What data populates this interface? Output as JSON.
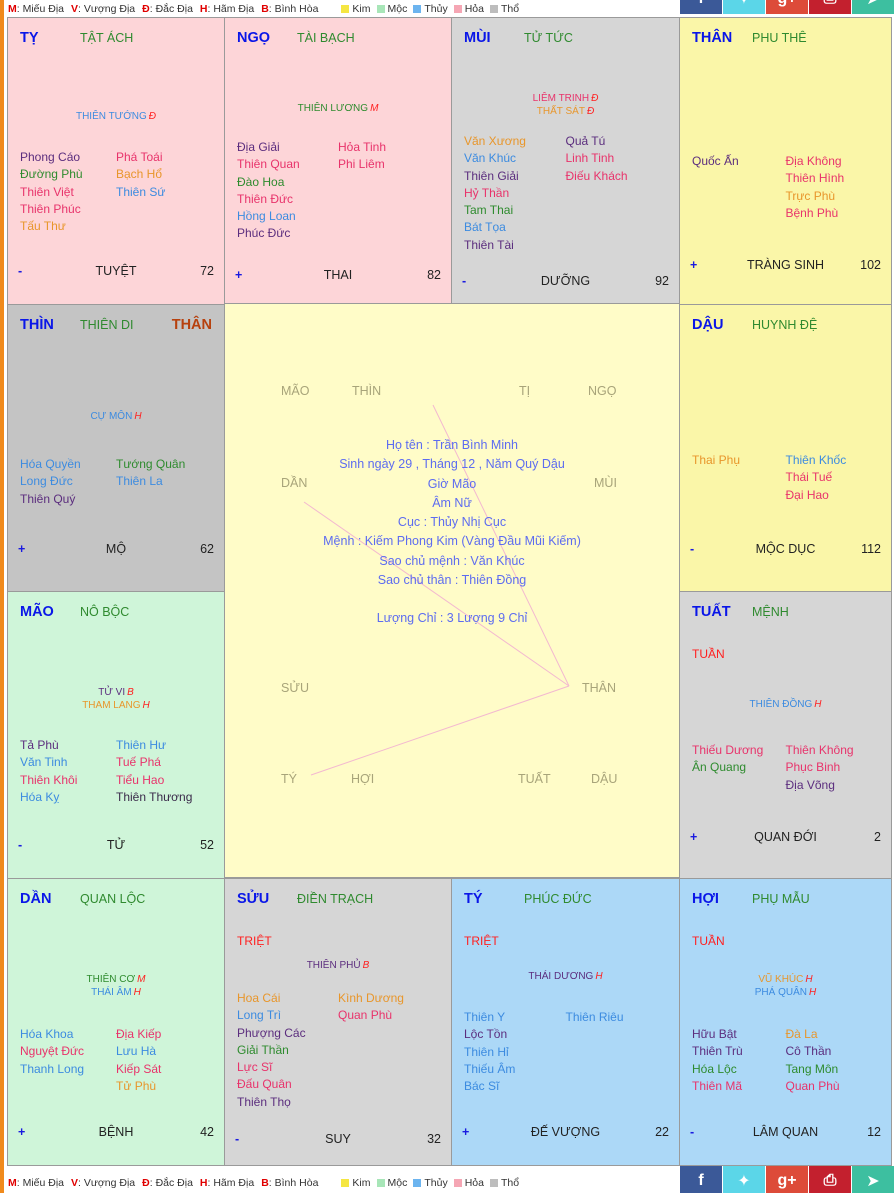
{
  "legend": {
    "qualities": [
      {
        "key": "M",
        "label": ": Miếu Địa"
      },
      {
        "key": "V",
        "label": ": Vượng Địa"
      },
      {
        "key": "Đ",
        "label": ": Đắc Địa"
      },
      {
        "key": "H",
        "label": ": Hãm Địa"
      },
      {
        "key": "B",
        "label": ": Bình Hòa"
      }
    ],
    "elements": [
      {
        "label": "Kim",
        "color": "#f5e642"
      },
      {
        "label": "Mộc",
        "color": "#a8e6b8"
      },
      {
        "label": "Thủy",
        "color": "#6cb4ef"
      },
      {
        "label": "Hỏa",
        "color": "#f5a6b4"
      },
      {
        "label": "Thổ",
        "color": "#bdbdbd"
      }
    ]
  },
  "share": [
    {
      "name": "facebook",
      "glyph": "f",
      "color": "#3b5998"
    },
    {
      "name": "twitter",
      "glyph": "🐦",
      "color": "#5bd6e8"
    },
    {
      "name": "google-plus",
      "glyph": "g+",
      "color": "#dd4b39"
    },
    {
      "name": "print",
      "glyph": "⎙",
      "color": "#c3202e"
    },
    {
      "name": "telegram",
      "glyph": "➤",
      "color": "#3dbfa0"
    }
  ],
  "cells": {
    "ty_snake": {
      "branch": "TỴ",
      "palace": "TẬT ÁCH",
      "bg": "#fdd5d8",
      "main": [
        {
          "name": "THIÊN TƯỚNG",
          "q": "Đ",
          "color": "#3c8be0"
        }
      ],
      "left": [
        [
          "Phong Cáo",
          "purple"
        ],
        [
          "Đường Phù",
          "green"
        ],
        [
          "Thiên Việt",
          "pink"
        ],
        [
          "Thiên Phúc",
          "pink"
        ],
        [
          "Tấu Thư",
          "orange"
        ]
      ],
      "right": [
        [
          "Phá Toái",
          "pink"
        ],
        [
          "Bạch Hổ",
          "orange"
        ],
        [
          "Thiên Sứ",
          "blue"
        ]
      ],
      "sign": "-",
      "stage": "TUYỆT",
      "age": "72"
    },
    "ngo": {
      "branch": "NGỌ",
      "palace": "TÀI BẠCH",
      "bg": "#fdd5d8",
      "main": [
        {
          "name": "THIÊN LƯƠNG",
          "q": "M",
          "color": "#2e8b2e"
        }
      ],
      "left": [
        [
          "Địa Giải",
          "purple"
        ],
        [
          "Thiên Quan",
          "pink"
        ],
        [
          "Đào Hoa",
          "green"
        ],
        [
          "Thiên Đức",
          "pink"
        ],
        [
          "Hồng Loan",
          "blue"
        ],
        [
          "Phúc Đức",
          "purple"
        ]
      ],
      "right": [
        [
          "Hỏa Tinh",
          "pink"
        ],
        [
          "Phi Liêm",
          "pink"
        ]
      ],
      "sign": "+",
      "stage": "THAI",
      "age": "82"
    },
    "mui": {
      "branch": "MÙI",
      "palace": "TỬ TỨC",
      "bg": "#d6d6d6",
      "main": [
        {
          "name": "LIÊM TRINH",
          "q": "Đ",
          "color": "#e8336b"
        },
        {
          "name": "THẤT SÁT",
          "q": "Đ",
          "color": "#e8962b"
        }
      ],
      "left": [
        [
          "Văn Xương",
          "orange"
        ],
        [
          "Văn Khúc",
          "blue"
        ],
        [
          "Thiên Giải",
          "purple"
        ],
        [
          "Hỷ Thần",
          "pink"
        ],
        [
          "Tam Thai",
          "green"
        ],
        [
          "Bát Tọa",
          "blue"
        ],
        [
          "Thiên Tài",
          "purple"
        ]
      ],
      "right": [
        [
          "Quả Tú",
          "purple"
        ],
        [
          "Linh Tinh",
          "pink"
        ],
        [
          "Điếu Khách",
          "pink"
        ]
      ],
      "sign": "-",
      "stage": "DƯỠNG",
      "age": "92"
    },
    "than_monkey": {
      "branch": "THÂN",
      "palace": "PHU THÊ",
      "bg": "#faf6a8",
      "main": [],
      "left": [
        [
          "Quốc Ấn",
          "purple"
        ]
      ],
      "right": [
        [
          "Địa Không",
          "pink"
        ],
        [
          "Thiên Hình",
          "pink"
        ],
        [
          "Trực Phù",
          "orange"
        ],
        [
          "Bệnh Phù",
          "pink"
        ]
      ],
      "sign": "+",
      "stage": "TRÀNG SINH",
      "age": "102"
    },
    "thin": {
      "branch": "THÌN",
      "palace": "THIÊN DI",
      "than_mark": "THÂN",
      "bg": "#c4c4c4",
      "main": [
        {
          "name": "CỰ MÔN",
          "q": "H",
          "color": "#3c8be0"
        }
      ],
      "left": [
        [
          "Hóa Quyền",
          "blue"
        ],
        [
          "Long Đức",
          "blue"
        ],
        [
          "Thiên Quý",
          "purple"
        ]
      ],
      "right": [
        [
          "Tướng Quân",
          "green"
        ],
        [
          "Thiên La",
          "blue"
        ]
      ],
      "sign": "+",
      "stage": "MỘ",
      "age": "62"
    },
    "dau": {
      "branch": "DẬU",
      "palace": "HUYNH ĐỆ",
      "bg": "#faf6a8",
      "main": [],
      "left": [
        [
          "Thai Phụ",
          "orange"
        ]
      ],
      "right": [
        [
          "Thiên Khốc",
          "blue"
        ],
        [
          "Thái Tuế",
          "pink"
        ],
        [
          "Đại Hao",
          "pink"
        ]
      ],
      "sign": "-",
      "stage": "MỘC DỤC",
      "age": "112"
    },
    "mao": {
      "branch": "MÃO",
      "palace": "NÔ BỘC",
      "bg": "#cff5d9",
      "main": [
        {
          "name": "TỬ VI",
          "q": "B",
          "color": "#5b2d7e"
        },
        {
          "name": "THAM LANG",
          "q": "H",
          "color": "#e8962b"
        }
      ],
      "left": [
        [
          "Tả Phù",
          "purple"
        ],
        [
          "Văn Tinh",
          "blue"
        ],
        [
          "Thiên Khôi",
          "pink"
        ],
        [
          "Hóa Kỵ",
          "blue"
        ]
      ],
      "right": [
        [
          "Thiên Hư",
          "blue"
        ],
        [
          "Tuế Phá",
          "pink"
        ],
        [
          "Tiểu Hao",
          "pink"
        ],
        [
          "Thiên Thương",
          "dark"
        ]
      ],
      "sign": "-",
      "stage": "TỬ",
      "age": "52"
    },
    "tuat": {
      "branch": "TUẤT",
      "palace": "MỆNH",
      "tuan": "TUẦN",
      "bg": "#d6d6d6",
      "main": [
        {
          "name": "THIÊN ĐỒNG",
          "q": "H",
          "color": "#3c8be0"
        }
      ],
      "left": [
        [
          "Thiếu Dương",
          "pink"
        ],
        [
          "Ân Quang",
          "green"
        ]
      ],
      "right": [
        [
          "Thiên Không",
          "pink"
        ],
        [
          "Phục Binh",
          "pink"
        ],
        [
          "Địa Võng",
          "purple"
        ]
      ],
      "sign": "+",
      "stage": "QUAN ĐỚI",
      "age": "2"
    },
    "dan": {
      "branch": "DẦN",
      "palace": "QUAN LỘC",
      "bg": "#cff5d9",
      "main": [
        {
          "name": "THIÊN CƠ",
          "q": "M",
          "color": "#2e8b2e"
        },
        {
          "name": "THÁI ÂM",
          "q": "H",
          "color": "#3c8be0"
        }
      ],
      "left": [
        [
          "Hóa Khoa",
          "blue"
        ],
        [
          "Nguyệt Đức",
          "pink"
        ],
        [
          "Thanh Long",
          "blue"
        ]
      ],
      "right": [
        [
          "Địa Kiếp",
          "pink"
        ],
        [
          "Lưu Hà",
          "blue"
        ],
        [
          "Kiếp Sát",
          "pink"
        ],
        [
          "Tử Phù",
          "orange"
        ]
      ],
      "sign": "+",
      "stage": "BỆNH",
      "age": "42"
    },
    "suu": {
      "branch": "SỬU",
      "palace": "ĐIỀN TRẠCH",
      "tuan": "TRIỆT",
      "bg": "#d6d6d6",
      "main": [
        {
          "name": "THIÊN PHỦ",
          "q": "B",
          "color": "#5b2d7e"
        }
      ],
      "left": [
        [
          "Hoa Cái",
          "orange"
        ],
        [
          "Long Trì",
          "blue"
        ],
        [
          "Phượng Các",
          "purple"
        ],
        [
          "Giải Thần",
          "green"
        ],
        [
          "Lực Sĩ",
          "pink"
        ],
        [
          "Đấu Quân",
          "pink"
        ],
        [
          "Thiên Thọ",
          "purple"
        ]
      ],
      "right": [
        [
          "Kình Dương",
          "orange"
        ],
        [
          "Quan Phù",
          "pink"
        ]
      ],
      "sign": "-",
      "stage": "SUY",
      "age": "32"
    },
    "ty_rat": {
      "branch": "TÝ",
      "palace": "PHÚC ĐỨC",
      "tuan": "TRIỆT",
      "bg": "#acd8f7",
      "main": [
        {
          "name": "THÁI DƯƠNG",
          "q": "H",
          "color": "#5b2d7e"
        }
      ],
      "left": [
        [
          "Thiên Y",
          "blue"
        ],
        [
          "Lộc Tồn",
          "purple"
        ],
        [
          "Thiên Hỉ",
          "blue"
        ],
        [
          "Thiếu Âm",
          "blue"
        ],
        [
          "Bác Sĩ",
          "blue"
        ]
      ],
      "right": [
        [
          "Thiên Riêu",
          "blue"
        ]
      ],
      "sign": "+",
      "stage": "ĐẾ VƯỢNG",
      "age": "22"
    },
    "hoi": {
      "branch": "HỢI",
      "palace": "PHỤ MẪU",
      "tuan": "TUẦN",
      "bg": "#acd8f7",
      "main": [
        {
          "name": "VŨ KHÚC",
          "q": "H",
          "color": "#e8962b"
        },
        {
          "name": "PHÁ QUÂN",
          "q": "H",
          "color": "#3c8be0"
        }
      ],
      "left": [
        [
          "Hữu Bật",
          "purple"
        ],
        [
          "Thiên Trù",
          "purple"
        ],
        [
          "Hóa Lộc",
          "green"
        ],
        [
          "Thiên Mã",
          "pink"
        ]
      ],
      "right": [
        [
          "Đà La",
          "orange"
        ],
        [
          "Cô Thần",
          "purple"
        ],
        [
          "Tang Môn",
          "green"
        ],
        [
          "Quan Phù",
          "pink"
        ]
      ],
      "sign": "-",
      "stage": "LÂM QUAN",
      "age": "12"
    }
  },
  "center": {
    "labels": {
      "mao": "MÃO",
      "thin": "THÌN",
      "ti": "TỊ",
      "ngo": "NGỌ",
      "dan": "DẦN",
      "mui": "MÙI",
      "suu": "SỬU",
      "than": "THÂN",
      "ty": "TÝ",
      "hoi": "HỢI",
      "tuat": "TUẤT",
      "dau": "DẬU"
    },
    "info": {
      "name": "Họ tên : Trần Bình Minh",
      "birth": "Sinh ngày 29 , Tháng 12 , Năm Quý Dậu",
      "hour": "Giờ Mão",
      "gender": "Âm Nữ",
      "cuc": "Cục : Thủy Nhị Cục",
      "menh": "Mệnh : Kiếm Phong Kim (Vàng Đầu Mũi Kiếm)",
      "sao_chu_menh": "Sao chủ mệnh : Văn Khúc",
      "sao_chu_than": "Sao chủ thân : Thiên Đồng",
      "luong_chi": "Lượng Chỉ : 3 Lượng 9 Chỉ"
    }
  }
}
